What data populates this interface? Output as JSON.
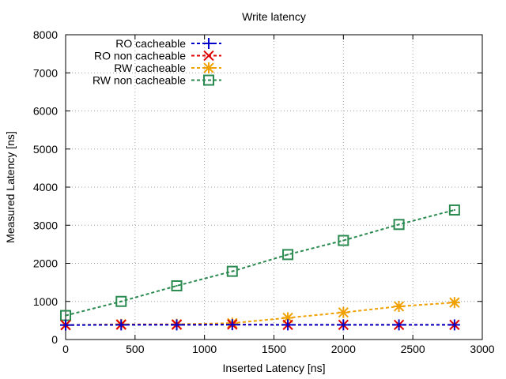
{
  "chart_data": {
    "type": "line",
    "title": "Write latency",
    "xlabel": "Inserted Latency [ns]",
    "ylabel": "Measured Latency [ns]",
    "xlim": [
      0,
      3000
    ],
    "ylim": [
      0,
      8000
    ],
    "xticks": [
      0,
      500,
      1000,
      1500,
      2000,
      2500,
      3000
    ],
    "yticks": [
      0,
      1000,
      2000,
      3000,
      4000,
      5000,
      6000,
      7000,
      8000
    ],
    "grid": true,
    "legend_position": "top-left",
    "x": [
      0,
      400,
      800,
      1200,
      1600,
      2000,
      2400,
      2800
    ],
    "series": [
      {
        "name": "RO cacheable",
        "color": "#0000cc",
        "marker": "plus",
        "values": [
          380,
          385,
          385,
          390,
          385,
          385,
          385,
          385
        ]
      },
      {
        "name": "RO non cacheable",
        "color": "#e00000",
        "marker": "cross",
        "values": [
          380,
          390,
          390,
          395,
          385,
          385,
          385,
          385
        ]
      },
      {
        "name": "RW cacheable",
        "color": "#f0a000",
        "marker": "star",
        "values": [
          380,
          400,
          400,
          430,
          570,
          710,
          870,
          970
        ]
      },
      {
        "name": "RW non cacheable",
        "color": "#2a8a50",
        "marker": "square",
        "values": [
          630,
          1000,
          1410,
          1790,
          2230,
          2600,
          3020,
          3400
        ]
      }
    ]
  }
}
